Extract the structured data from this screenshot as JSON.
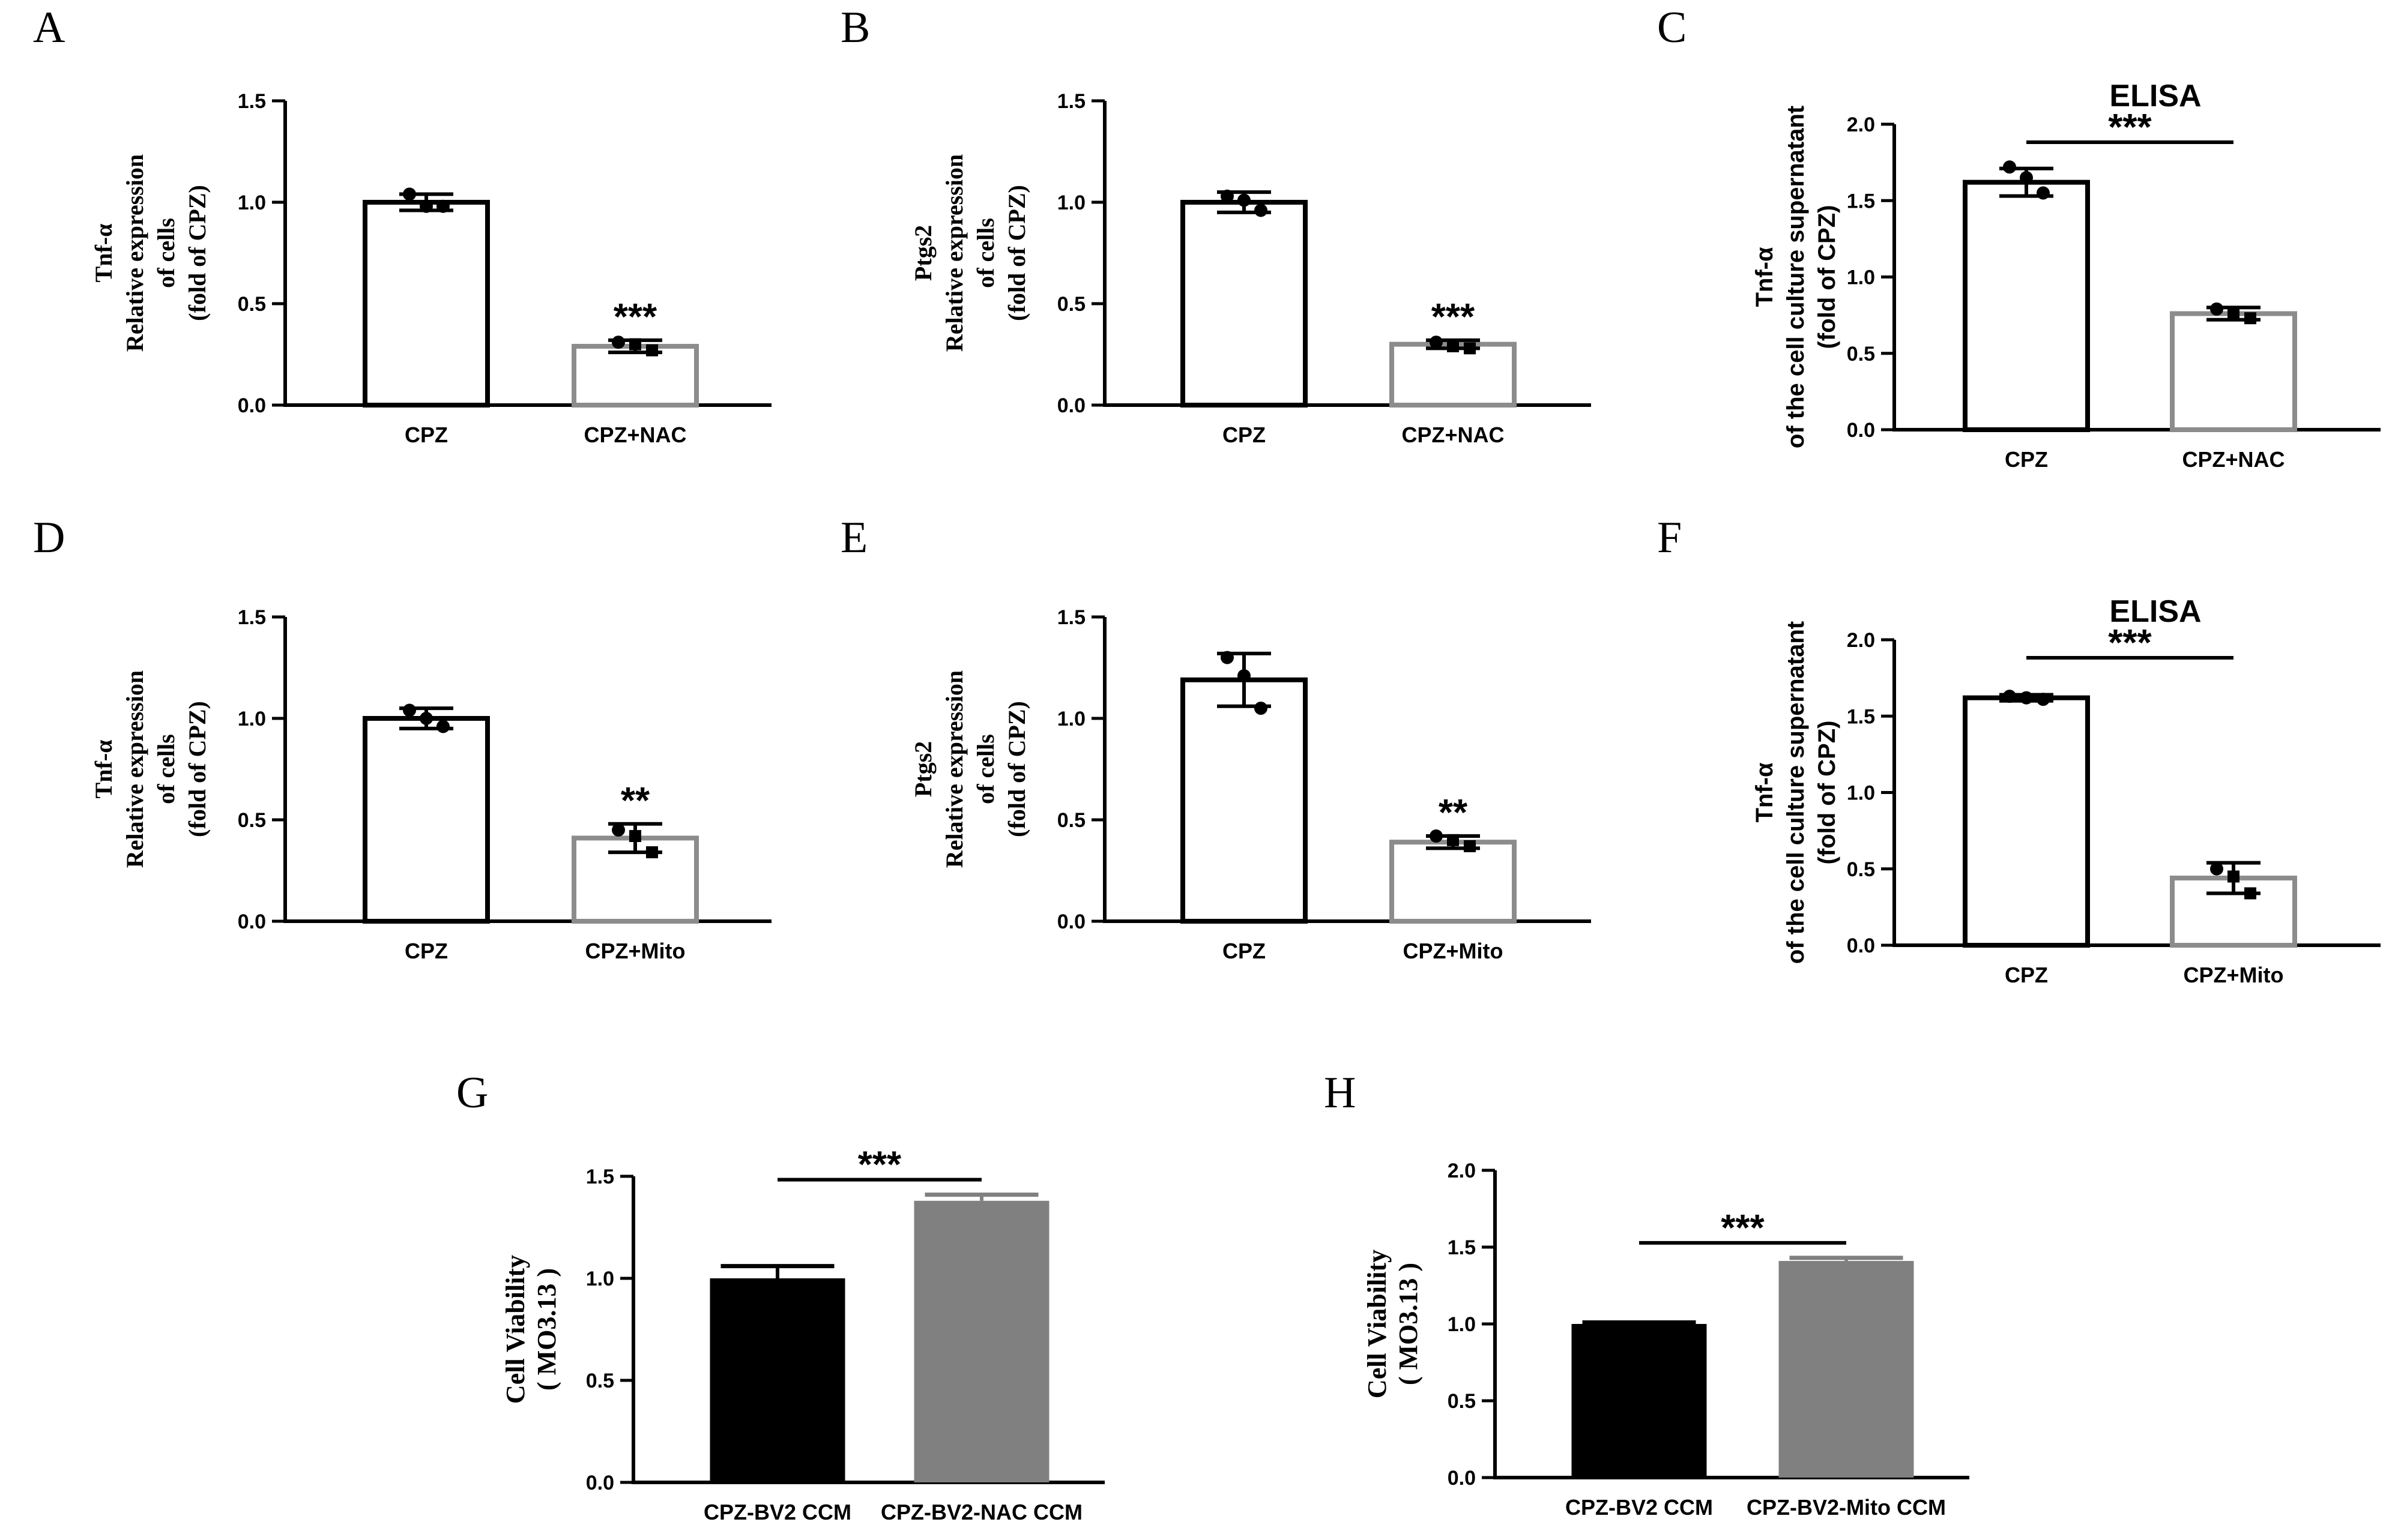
{
  "chart_data": [
    {
      "panel": "A",
      "type": "bar",
      "style": "outline",
      "title": "",
      "ylabel_lines": [
        "Tnf-α",
        "Relative expression",
        "of cells",
        "(fold of CPZ)"
      ],
      "ylim": [
        0,
        1.5
      ],
      "yticks": [
        "0.0",
        "0.5",
        "1.0",
        "1.5"
      ],
      "categories": [
        "CPZ",
        "CPZ+NAC"
      ],
      "values": [
        1.0,
        0.29
      ],
      "errors": [
        0.04,
        0.03
      ],
      "points": [
        [
          1.04,
          0.98,
          0.98
        ],
        [
          0.31,
          0.3,
          0.27
        ]
      ],
      "colors": [
        "#000000",
        "#8c8c8c"
      ],
      "significance": [
        {
          "target": 1,
          "label": "***"
        }
      ]
    },
    {
      "panel": "B",
      "type": "bar",
      "style": "outline",
      "title": "",
      "ylabel_lines": [
        "Ptgs2",
        "Relative expression",
        "of cells",
        "(fold of CPZ)"
      ],
      "ylim": [
        0,
        1.5
      ],
      "yticks": [
        "0.0",
        "0.5",
        "1.0",
        "1.5"
      ],
      "categories": [
        "CPZ",
        "CPZ+NAC"
      ],
      "values": [
        1.0,
        0.3
      ],
      "errors": [
        0.05,
        0.02
      ],
      "points": [
        [
          1.03,
          1.01,
          0.96
        ],
        [
          0.31,
          0.29,
          0.28
        ]
      ],
      "colors": [
        "#000000",
        "#8c8c8c"
      ],
      "significance": [
        {
          "target": 1,
          "label": "***"
        }
      ]
    },
    {
      "panel": "C",
      "type": "bar",
      "style": "outline",
      "title": "ELISA",
      "ylabel_lines": [
        "Tnf-α",
        "of the cell culture supernatant",
        "(fold of CPZ)"
      ],
      "ylim": [
        0,
        2.0
      ],
      "yticks": [
        "0.0",
        "0.5",
        "1.0",
        "1.5",
        "2.0"
      ],
      "categories": [
        "CPZ",
        "CPZ+NAC"
      ],
      "values": [
        1.62,
        0.76
      ],
      "errors": [
        0.09,
        0.04
      ],
      "points": [
        [
          1.72,
          1.65,
          1.55
        ],
        [
          0.79,
          0.75,
          0.73
        ]
      ],
      "colors": [
        "#000000",
        "#8c8c8c"
      ],
      "significance": [
        {
          "target": "bracket",
          "label": "***"
        }
      ]
    },
    {
      "panel": "D",
      "type": "bar",
      "style": "outline",
      "title": "",
      "ylabel_lines": [
        "Tnf-α",
        "Relative expression",
        "of cells",
        "(fold of CPZ)"
      ],
      "ylim": [
        0,
        1.5
      ],
      "yticks": [
        "0.0",
        "0.5",
        "1.0",
        "1.5"
      ],
      "categories": [
        "CPZ",
        "CPZ+Mito"
      ],
      "values": [
        1.0,
        0.41
      ],
      "errors": [
        0.05,
        0.07
      ],
      "points": [
        [
          1.04,
          1.0,
          0.96
        ],
        [
          0.45,
          0.42,
          0.34
        ]
      ],
      "colors": [
        "#000000",
        "#8c8c8c"
      ],
      "significance": [
        {
          "target": 1,
          "label": "**"
        }
      ]
    },
    {
      "panel": "E",
      "type": "bar",
      "style": "outline",
      "title": "",
      "ylabel_lines": [
        "Ptgs2",
        "Relative expression",
        "of cells",
        "(fold of CPZ)"
      ],
      "ylim": [
        0,
        1.5
      ],
      "yticks": [
        "0.0",
        "0.5",
        "1.0",
        "1.5"
      ],
      "categories": [
        "CPZ",
        "CPZ+Mito"
      ],
      "values": [
        1.19,
        0.39
      ],
      "errors": [
        0.13,
        0.03
      ],
      "points": [
        [
          1.3,
          1.21,
          1.05
        ],
        [
          0.42,
          0.4,
          0.37
        ]
      ],
      "colors": [
        "#000000",
        "#8c8c8c"
      ],
      "significance": [
        {
          "target": 1,
          "label": "**"
        }
      ]
    },
    {
      "panel": "F",
      "type": "bar",
      "style": "outline",
      "title": "ELISA",
      "ylabel_lines": [
        "Tnf-α",
        "of the cell culture supernatant",
        "(fold of CPZ)"
      ],
      "ylim": [
        0,
        2.0
      ],
      "yticks": [
        "0.0",
        "0.5",
        "1.0",
        "1.5",
        "2.0"
      ],
      "categories": [
        "CPZ",
        "CPZ+Mito"
      ],
      "values": [
        1.62,
        0.44
      ],
      "errors": [
        0.02,
        0.1
      ],
      "points": [
        [
          1.63,
          1.62,
          1.61
        ],
        [
          0.5,
          0.45,
          0.34
        ]
      ],
      "colors": [
        "#000000",
        "#8c8c8c"
      ],
      "significance": [
        {
          "target": "bracket",
          "label": "***"
        }
      ]
    },
    {
      "panel": "G",
      "type": "bar",
      "style": "filled",
      "title": "",
      "ylabel_lines": [
        "Cell Viability",
        "( MO3.13 )"
      ],
      "ylim": [
        0,
        1.5
      ],
      "yticks": [
        "0.0",
        "0.5",
        "1.0",
        "1.5"
      ],
      "categories": [
        "CPZ-BV2 CCM",
        "CPZ-BV2-NAC CCM"
      ],
      "values": [
        1.0,
        1.38
      ],
      "errors": [
        0.06,
        0.03
      ],
      "points": [],
      "colors": [
        "#000000",
        "#808080"
      ],
      "significance": [
        {
          "target": "bracket",
          "label": "***"
        }
      ]
    },
    {
      "panel": "H",
      "type": "bar",
      "style": "filled",
      "title": "",
      "ylabel_lines": [
        "Cell Viability",
        "( MO3.13 )"
      ],
      "ylim": [
        0,
        2.0
      ],
      "yticks": [
        "0.0",
        "0.5",
        "1.0",
        "1.5",
        "2.0"
      ],
      "categories": [
        "CPZ-BV2 CCM",
        "CPZ-BV2-Mito CCM"
      ],
      "values": [
        1.0,
        1.41
      ],
      "errors": [
        0.01,
        0.02
      ],
      "points": [],
      "colors": [
        "#000000",
        "#808080"
      ],
      "significance": [
        {
          "target": "bracket",
          "label": "***"
        }
      ]
    }
  ]
}
